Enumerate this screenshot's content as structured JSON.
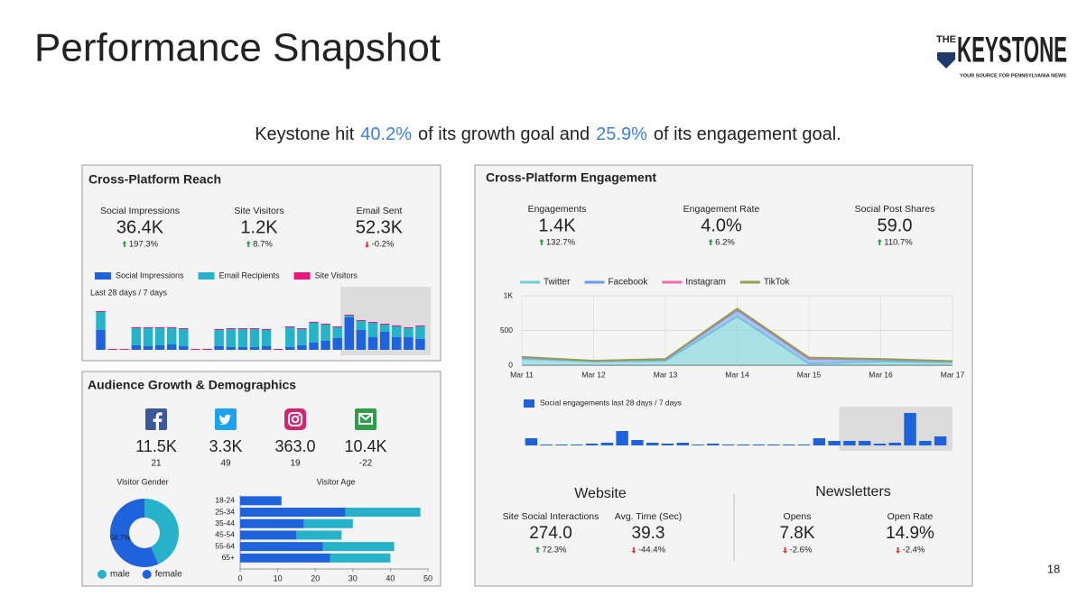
{
  "header": {
    "title": "Performance Snapshot",
    "logo_small": "THE",
    "logo": "KEYSTONE",
    "logo_tagline": "YOUR SOURCE FOR PENNSYLVANIA NEWS"
  },
  "summary": {
    "parts": [
      {
        "text": "Keystone hit"
      },
      {
        "text": "40.2%",
        "highlight": true
      },
      {
        "text": "of its growth goal and"
      },
      {
        "text": "25.9%",
        "highlight": true
      },
      {
        "text": "of its engagement goal."
      }
    ]
  },
  "reach": {
    "title": "Cross-Platform Reach",
    "kpis": [
      {
        "label": "Social Impressions",
        "value": "36.4K",
        "delta": "197.3%",
        "trend": "up"
      },
      {
        "label": "Site Visitors",
        "value": "1.2K",
        "delta": "8.7%",
        "trend": "up"
      },
      {
        "label": "Email Sent",
        "value": "52.3K",
        "delta": "-0.2%",
        "trend": "down"
      }
    ],
    "chart_data": {
      "type": "bar",
      "stacked": true,
      "caption": "Last 28 days / 7 days",
      "ylim": [
        0,
        50
      ],
      "highlight_last": 7,
      "series": [
        {
          "name": "Social Impressions",
          "color": "#1f63dc",
          "values": [
            22,
            0,
            0,
            5,
            4,
            5,
            6,
            4,
            0,
            0,
            4,
            3,
            3,
            3,
            4,
            0,
            3,
            5,
            8,
            10,
            13,
            36,
            22,
            14,
            20,
            14,
            14,
            12
          ]
        },
        {
          "name": "Email Recipients",
          "color": "#26b3c9",
          "values": [
            20,
            0,
            0,
            19,
            20,
            19,
            18,
            19,
            0,
            0,
            18,
            20,
            20,
            20,
            18,
            0,
            22,
            18,
            22,
            18,
            12,
            2,
            10,
            16,
            8,
            12,
            10,
            14
          ]
        },
        {
          "name": "Site Visitors",
          "color": "#e8177d",
          "values": [
            1,
            1,
            1,
            1,
            1,
            1,
            1,
            1,
            1,
            1,
            1,
            1,
            1,
            1,
            1,
            1,
            1,
            1,
            1,
            1,
            1,
            1,
            1,
            1,
            1,
            1,
            1,
            1
          ]
        }
      ]
    }
  },
  "audience": {
    "title": "Audience Growth & Demographics",
    "platforms": [
      {
        "icon": "facebook",
        "value": "11.5K",
        "change": "21",
        "trend": "up"
      },
      {
        "icon": "twitter",
        "value": "3.3K",
        "change": "49",
        "trend": "up"
      },
      {
        "icon": "instagram",
        "value": "363.0",
        "change": "19",
        "trend": "up"
      },
      {
        "icon": "email",
        "value": "10.4K",
        "change": "-22",
        "trend": "down"
      }
    ],
    "gender": {
      "type": "pie",
      "donut": true,
      "title": "Visitor Gender",
      "categories": [
        "male",
        "female"
      ],
      "colors": [
        "#26b3c9",
        "#1f63dc"
      ],
      "values": [
        43.3,
        56.7
      ],
      "value_labels": [
        null,
        "56.7%"
      ]
    },
    "age": {
      "type": "hbar",
      "stacked": true,
      "title": "Visitor Age",
      "categories": [
        "18-24",
        "25-34",
        "35-44",
        "45-54",
        "55-64",
        "65+"
      ],
      "xlim": [
        0,
        50
      ],
      "xticks": [
        0,
        10,
        20,
        30,
        40,
        50
      ],
      "series": [
        {
          "color": "#1f63dc",
          "values": [
            11,
            28,
            17,
            15,
            22,
            24
          ]
        },
        {
          "color": "#26b3c9",
          "values": [
            0,
            20,
            13,
            12,
            19,
            16
          ]
        }
      ]
    }
  },
  "engagement": {
    "title": "Cross-Platform Engagement",
    "kpis": [
      {
        "label": "Engagements",
        "value": "1.4K",
        "delta": "132.7%",
        "trend": "up"
      },
      {
        "label": "Engagement Rate",
        "value": "4.0%",
        "delta": "6.2%",
        "trend": "up"
      },
      {
        "label": "Social Post Shares",
        "value": "59.0",
        "delta": "110.7%",
        "trend": "up"
      }
    ],
    "line_chart": {
      "type": "area",
      "stacked": true,
      "grid": true,
      "categories": [
        "Mar 11",
        "Mar 12",
        "Mar 13",
        "Mar 14",
        "Mar 15",
        "Mar 16",
        "Mar 17"
      ],
      "ylim": [
        0,
        1000
      ],
      "yticks": [
        {
          "value": 1000,
          "label": "1K"
        },
        500,
        0
      ],
      "series": [
        {
          "name": "Twitter",
          "color": "#6fd0d8",
          "values": [
            90,
            50,
            60,
            700,
            20,
            50,
            40
          ]
        },
        {
          "name": "Facebook",
          "color": "#6c9cec",
          "values": [
            20,
            10,
            20,
            90,
            70,
            30,
            15
          ]
        },
        {
          "name": "Instagram",
          "color": "#f06aae",
          "values": [
            5,
            3,
            5,
            15,
            10,
            5,
            3
          ]
        },
        {
          "name": "TikTok",
          "color": "#8ea24a",
          "values": [
            5,
            2,
            5,
            10,
            10,
            5,
            2
          ]
        }
      ]
    },
    "bar_chart": {
      "type": "bar",
      "ylim": [
        0,
        40
      ],
      "highlight_last": 7,
      "series": [
        {
          "name": "Social engagements last 28 days / 7 days",
          "color": "#1f63dc",
          "values": [
            8,
            1,
            1,
            1,
            2,
            3,
            16,
            6,
            3,
            2,
            3,
            1,
            2,
            1,
            1,
            1,
            1,
            1,
            1,
            8,
            5,
            5,
            5,
            2,
            3,
            36,
            5,
            10
          ]
        }
      ]
    },
    "website": {
      "title": "Website",
      "kpis": [
        {
          "label": "Site Social Interactions",
          "value": "274.0",
          "delta": "72.3%",
          "trend": "up"
        },
        {
          "label": "Avg. Time (Sec)",
          "value": "39.3",
          "delta": "-44.4%",
          "trend": "down"
        }
      ]
    },
    "newsletters": {
      "title": "Newsletters",
      "kpis": [
        {
          "label": "Opens",
          "value": "7.8K",
          "delta": "-2.6%",
          "trend": "down"
        },
        {
          "label": "Open Rate",
          "value": "14.9%",
          "delta": "-2.4%",
          "trend": "down"
        }
      ]
    }
  },
  "page_number": "18"
}
